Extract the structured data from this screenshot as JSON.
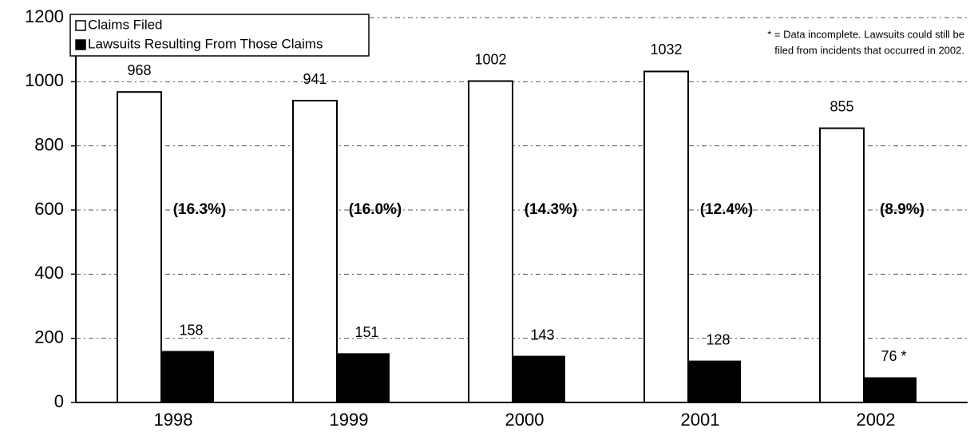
{
  "chart_data": {
    "type": "bar",
    "categories": [
      "1998",
      "1999",
      "2000",
      "2001",
      "2002"
    ],
    "series": [
      {
        "name": "Claims Filed",
        "color": "#ffffff",
        "values": [
          968,
          941,
          1002,
          1032,
          855
        ]
      },
      {
        "name": "Lawsuits Resulting From Those Claims",
        "color": "#000000",
        "values": [
          158,
          151,
          143,
          128,
          76
        ],
        "value_labels": [
          "158",
          "151",
          "143",
          "128",
          "76 *"
        ]
      }
    ],
    "ratio_labels": [
      "(16.3%)",
      "(16.0%)",
      "(14.3%)",
      "(12.4%)",
      "(8.9%)"
    ],
    "annotation": [
      "* = Data incomplete.  Lawsuits could still be",
      "filed from incidents that occurred in 2002."
    ],
    "ylim": [
      0,
      1200
    ],
    "yticks": [
      0,
      200,
      400,
      600,
      800,
      1000,
      1200
    ],
    "grid": true,
    "legend": "top-left"
  }
}
